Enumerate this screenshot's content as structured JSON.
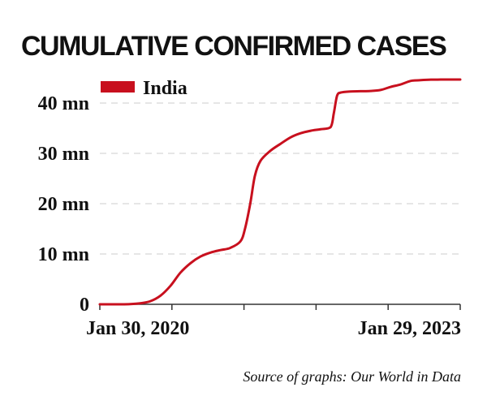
{
  "chart_data": {
    "type": "line",
    "title": "CUMULATIVE CONFIRMED CASES",
    "xlabel": "",
    "ylabel": "",
    "x_tick_labels": [
      "Jan 30, 2020",
      "Jan 29, 2023"
    ],
    "y_ticks": [
      0,
      10,
      20,
      30,
      40
    ],
    "y_tick_labels": [
      "0",
      "10 mn",
      "20 mn",
      "30 mn",
      "40 mn"
    ],
    "ylim": [
      0,
      45
    ],
    "xlim": [
      "2020-01-30",
      "2023-01-29"
    ],
    "grid": true,
    "legend_position": "top-left",
    "series": [
      {
        "name": "India",
        "color": "#c8101e",
        "x": [
          "2020-01-30",
          "2020-04-01",
          "2020-05-01",
          "2020-06-01",
          "2020-07-01",
          "2020-08-01",
          "2020-09-01",
          "2020-10-01",
          "2020-11-01",
          "2020-12-01",
          "2021-01-01",
          "2021-02-01",
          "2021-03-01",
          "2021-04-01",
          "2021-04-15",
          "2021-05-01",
          "2021-05-15",
          "2021-06-01",
          "2021-07-01",
          "2021-08-01",
          "2021-09-01",
          "2021-10-01",
          "2021-11-01",
          "2021-12-01",
          "2021-12-31",
          "2022-01-10",
          "2022-01-20",
          "2022-02-01",
          "2022-03-01",
          "2022-04-01",
          "2022-05-01",
          "2022-06-01",
          "2022-07-01",
          "2022-08-01",
          "2022-09-01",
          "2022-10-01",
          "2022-11-01",
          "2022-12-01",
          "2023-01-29"
        ],
        "values": [
          0,
          0.002,
          0.04,
          0.2,
          0.6,
          1.7,
          3.7,
          6.3,
          8.2,
          9.5,
          10.3,
          10.8,
          11.2,
          12.5,
          15.0,
          20.0,
          25.5,
          28.5,
          30.5,
          31.9,
          33.2,
          34.0,
          34.5,
          34.8,
          35.2,
          38.0,
          41.5,
          42.1,
          42.3,
          42.35,
          42.4,
          42.6,
          43.2,
          43.7,
          44.4,
          44.55,
          44.65,
          44.67,
          44.68
        ]
      }
    ]
  },
  "source": "Source of graphs: Our World in Data"
}
